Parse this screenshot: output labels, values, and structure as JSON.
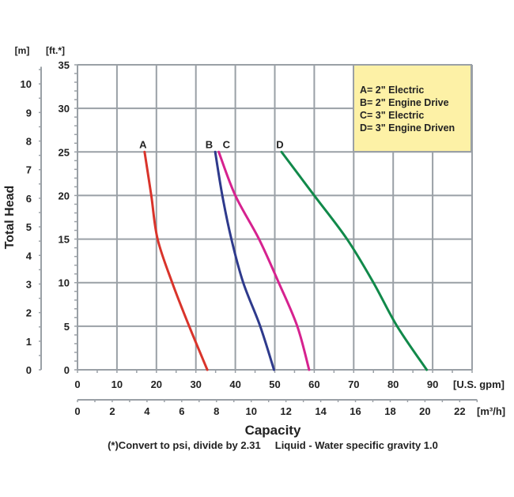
{
  "chart_data": {
    "type": "line",
    "xlabel": "Capacity",
    "x_unit": "[U.S. gpm]",
    "x2_unit": "[m³/h]",
    "ylabel": "Total Head",
    "y_unit": "[ft.*]",
    "y2_unit": "[m]",
    "xlim": [
      0,
      100
    ],
    "ylim": [
      0,
      35
    ],
    "x_ticks": [
      0,
      10,
      20,
      30,
      40,
      50,
      60,
      70,
      80,
      90
    ],
    "x2_ticks": [
      0,
      2,
      4,
      6,
      8,
      10,
      12,
      14,
      16,
      18,
      20,
      22
    ],
    "y_ticks": [
      0,
      5,
      10,
      15,
      20,
      25,
      30,
      35
    ],
    "y2_ticks": [
      0,
      1,
      2,
      3,
      4,
      5,
      6,
      7,
      8,
      9,
      10
    ],
    "grid": true,
    "legend_position": "top-right",
    "legend": [
      "A= 2\" Electric",
      "B= 2\" Engine Drive",
      "C= 3\" Electric",
      "D= 3\" Engine Driven"
    ],
    "series": [
      {
        "name": "A",
        "color": "#d9342b",
        "x": [
          17.0,
          18.7,
          20.3,
          24.0,
          28.3,
          32.9
        ],
        "y": [
          25,
          20,
          15,
          10,
          5,
          0
        ]
      },
      {
        "name": "B",
        "color": "#2e3a8c",
        "x": [
          34.9,
          36.7,
          39.0,
          42.0,
          46.3,
          49.8
        ],
        "y": [
          25,
          20,
          15,
          10,
          5,
          0
        ]
      },
      {
        "name": "C",
        "color": "#d6228f",
        "x": [
          35.8,
          40.0,
          46.0,
          51.0,
          55.7,
          58.7
        ],
        "y": [
          25,
          20,
          15,
          10,
          5,
          0
        ]
      },
      {
        "name": "D",
        "color": "#11894a",
        "x": [
          51.7,
          60.0,
          68.3,
          75.0,
          81.0,
          88.5
        ],
        "y": [
          25,
          20,
          15,
          10,
          5,
          0
        ]
      }
    ],
    "footnote": "(*)Convert to psi, divide by 2.31     Liquid - Water specific gravity 1.0"
  }
}
